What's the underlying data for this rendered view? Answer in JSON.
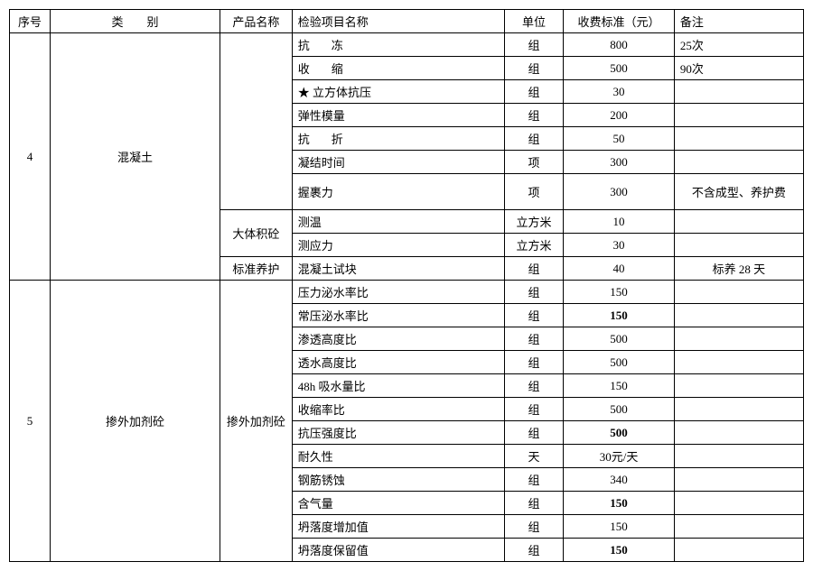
{
  "headers": {
    "seq": "序号",
    "category": "类　　别",
    "product": "产品名称",
    "item": "检验项目名称",
    "unit": "单位",
    "fee": "收费标准（元）",
    "note": "备注"
  },
  "group4": {
    "seq": "4",
    "category": "混凝土",
    "productA": "",
    "productB": "大体积砼",
    "productC": "标准养护",
    "rows": [
      {
        "item_pre": "抗",
        "item_post": "冻",
        "unit": "组",
        "fee": "800",
        "note": "25次"
      },
      {
        "item_pre": "收",
        "item_post": "缩",
        "unit": "组",
        "fee": "500",
        "note": "90次"
      },
      {
        "item": "★ 立方体抗压",
        "unit": "组",
        "fee": "30",
        "note": ""
      },
      {
        "item": "弹性模量",
        "unit": "组",
        "fee": "200",
        "note": ""
      },
      {
        "item_pre": "抗",
        "item_post": "折",
        "unit": "组",
        "fee": "50",
        "note": ""
      },
      {
        "item": "凝结时间",
        "unit": "项",
        "fee": "300",
        "note": ""
      },
      {
        "item": "握裹力",
        "unit": "项",
        "fee": "300",
        "note": "不含成型、养护费"
      },
      {
        "item": "测温",
        "unit": "立方米",
        "fee": "10",
        "note": ""
      },
      {
        "item": "测应力",
        "unit": "立方米",
        "fee": "30",
        "note": ""
      },
      {
        "item": "混凝土试块",
        "unit": "组",
        "fee": "40",
        "note": "标养 28 天"
      }
    ]
  },
  "group5": {
    "seq": "5",
    "category": "掺外加剂砼",
    "product": "掺外加剂砼",
    "rows": [
      {
        "item": "压力泌水率比",
        "unit": "组",
        "fee": "150",
        "note": "",
        "bold": false
      },
      {
        "item": "常压泌水率比",
        "unit": "组",
        "fee": "150",
        "note": "",
        "bold": true
      },
      {
        "item": "渗透高度比",
        "unit": "组",
        "fee": "500",
        "note": "",
        "bold": false
      },
      {
        "item": "透水高度比",
        "unit": "组",
        "fee": "500",
        "note": "",
        "bold": false
      },
      {
        "item": "48h 吸水量比",
        "unit": "组",
        "fee": "150",
        "note": "",
        "bold": false
      },
      {
        "item": "收缩率比",
        "unit": "组",
        "fee": "500",
        "note": "",
        "bold": false
      },
      {
        "item": "抗压强度比",
        "unit": "组",
        "fee": "500",
        "note": "",
        "bold": true
      },
      {
        "item": "耐久性",
        "unit": "天",
        "fee": "30元/天",
        "note": "",
        "bold": false
      },
      {
        "item": "钢筋锈蚀",
        "unit": "组",
        "fee": "340",
        "note": "",
        "bold": false
      },
      {
        "item": "含气量",
        "unit": "组",
        "fee": "150",
        "note": "",
        "bold": true
      },
      {
        "item": "坍落度增加值",
        "unit": "组",
        "fee": "150",
        "note": "",
        "bold": false
      },
      {
        "item": "坍落度保留值",
        "unit": "组",
        "fee": "150",
        "note": "",
        "bold": true
      }
    ]
  }
}
